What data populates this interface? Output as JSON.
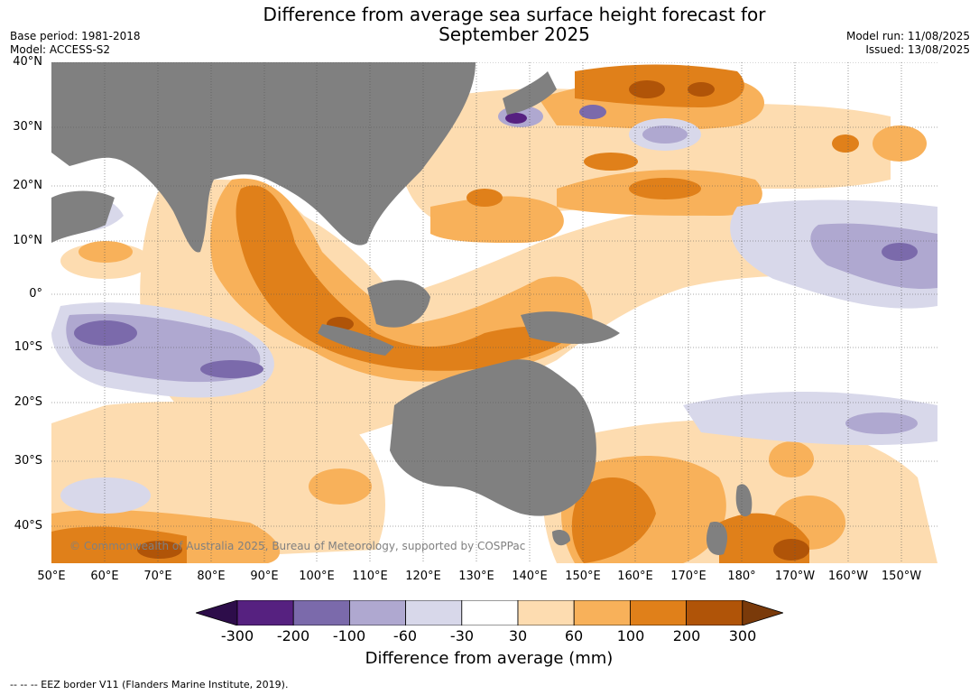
{
  "title_line1": "Difference from average sea surface height forecast for",
  "title_line2": "September 2025",
  "meta": {
    "base_period": "Base period: 1981-2018",
    "model": "Model: ACCESS-S2",
    "model_run": "Model run: 11/08/2025",
    "issued": "Issued: 13/08/2025"
  },
  "lat_labels": [
    "40°N",
    "30°N",
    "20°N",
    "10°N",
    "0°",
    "10°S",
    "20°S",
    "30°S",
    "40°S"
  ],
  "lon_labels": [
    "50°E",
    "60°E",
    "70°E",
    "80°E",
    "90°E",
    "100°E",
    "110°E",
    "120°E",
    "130°E",
    "140°E",
    "150°E",
    "160°E",
    "170°E",
    "180°",
    "170°W",
    "160°W",
    "150°W"
  ],
  "copyright": "© Commonwealth of Australia 2025, Bureau of Meteorology, supported by COSPPac",
  "colorbar": {
    "ticks": [
      "-300",
      "-200",
      "-100",
      "-60",
      "-30",
      "30",
      "60",
      "100",
      "200",
      "300"
    ],
    "colors": [
      "#2d0d4a",
      "#562180",
      "#7b6aab",
      "#afa8d0",
      "#d8d8ea",
      "#ffffff",
      "#fddcb0",
      "#f8b15a",
      "#e0801a",
      "#b05408",
      "#7a3a0a"
    ],
    "label": "Difference from average (mm)"
  },
  "footer": "--  --  -- EEZ border V11 (Flanders Marine Institute, 2019).",
  "colors": {
    "land": "#808080",
    "grid": "#555555"
  }
}
